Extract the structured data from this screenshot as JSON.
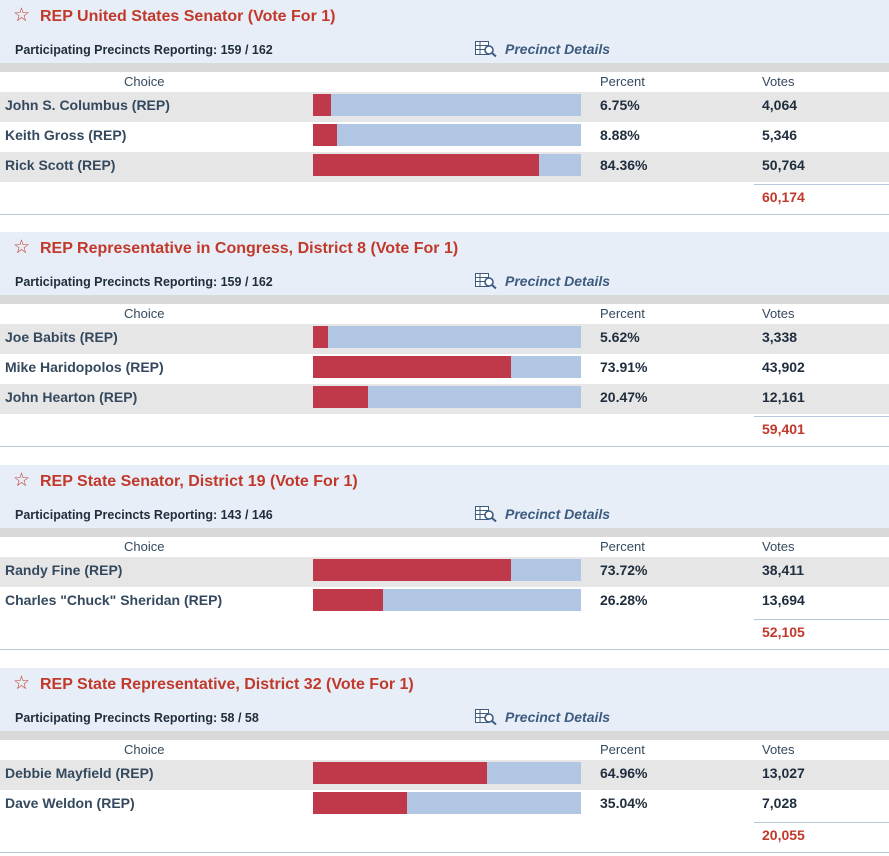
{
  "races": [
    {
      "title": "REP United States Senator (Vote For 1)",
      "precincts_label": "Participating Precincts Reporting:",
      "precincts_value": "159 / 162",
      "precinct_details": "Precinct Details",
      "col_choice": "Choice",
      "col_percent": "Percent",
      "col_votes": "Votes",
      "candidates": [
        {
          "name": "John S. Columbus (REP)",
          "percent": "6.75%",
          "pct_value": 6.75,
          "votes": "4,064"
        },
        {
          "name": "Keith Gross (REP)",
          "percent": "8.88%",
          "pct_value": 8.88,
          "votes": "5,346"
        },
        {
          "name": "Rick Scott (REP)",
          "percent": "84.36%",
          "pct_value": 84.36,
          "votes": "50,764"
        }
      ],
      "total": "60,174"
    },
    {
      "title": "REP Representative in Congress, District 8 (Vote For 1)",
      "precincts_label": "Participating Precincts Reporting:",
      "precincts_value": "159 / 162",
      "precinct_details": "Precinct Details",
      "col_choice": "Choice",
      "col_percent": "Percent",
      "col_votes": "Votes",
      "candidates": [
        {
          "name": "Joe Babits (REP)",
          "percent": "5.62%",
          "pct_value": 5.62,
          "votes": "3,338"
        },
        {
          "name": "Mike Haridopolos (REP)",
          "percent": "73.91%",
          "pct_value": 73.91,
          "votes": "43,902"
        },
        {
          "name": "John Hearton (REP)",
          "percent": "20.47%",
          "pct_value": 20.47,
          "votes": "12,161"
        }
      ],
      "total": "59,401"
    },
    {
      "title": "REP State Senator, District 19 (Vote For 1)",
      "precincts_label": "Participating Precincts Reporting:",
      "precincts_value": "143 / 146",
      "precinct_details": "Precinct Details",
      "col_choice": "Choice",
      "col_percent": "Percent",
      "col_votes": "Votes",
      "candidates": [
        {
          "name": "Randy Fine (REP)",
          "percent": "73.72%",
          "pct_value": 73.72,
          "votes": "38,411"
        },
        {
          "name": "Charles \"Chuck\" Sheridan (REP)",
          "percent": "26.28%",
          "pct_value": 26.28,
          "votes": "13,694"
        }
      ],
      "total": "52,105"
    },
    {
      "title": "REP State Representative, District 32 (Vote For 1)",
      "precincts_label": "Participating Precincts Reporting:",
      "precincts_value": "58 / 58",
      "precinct_details": "Precinct Details",
      "col_choice": "Choice",
      "col_percent": "Percent",
      "col_votes": "Votes",
      "candidates": [
        {
          "name": "Debbie Mayfield (REP)",
          "percent": "64.96%",
          "pct_value": 64.96,
          "votes": "13,027"
        },
        {
          "name": "Dave Weldon (REP)",
          "percent": "35.04%",
          "pct_value": 35.04,
          "votes": "7,028"
        }
      ],
      "total": "20,055"
    }
  ],
  "colors": {
    "accent_red": "#c0392b",
    "bar_fill": "#c0394a",
    "bar_track": "#b0c6e3",
    "header_bg": "#e8eef7"
  },
  "icons": {
    "favorite": "star-outline-icon",
    "details": "table-search-icon"
  }
}
